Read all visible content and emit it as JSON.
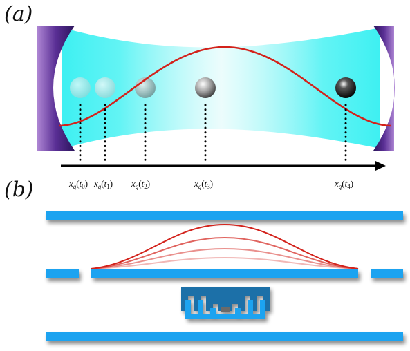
{
  "panel_a": {
    "label": "(a)",
    "positions": [
      {
        "var": "x",
        "sub": "q",
        "arg": "t",
        "argsub": "0",
        "shade": "light"
      },
      {
        "var": "x",
        "sub": "q",
        "arg": "t",
        "argsub": "1",
        "shade": "light"
      },
      {
        "var": "x",
        "sub": "q",
        "arg": "t",
        "argsub": "2",
        "shade": "medium"
      },
      {
        "var": "x",
        "sub": "q",
        "arg": "t",
        "argsub": "3",
        "shade": "dark"
      },
      {
        "var": "x",
        "sub": "q",
        "arg": "t",
        "argsub": "4",
        "shade": "black"
      }
    ]
  },
  "panel_b": {
    "label": "(b)",
    "mode_curves": 4
  },
  "colors": {
    "mirror": "#4b2a86",
    "beam": "#4ff2f4",
    "mode_curve": "#d3221b",
    "electrode": "#1aa3f0",
    "chip": "#1d6fa8",
    "axis": "#000000"
  }
}
